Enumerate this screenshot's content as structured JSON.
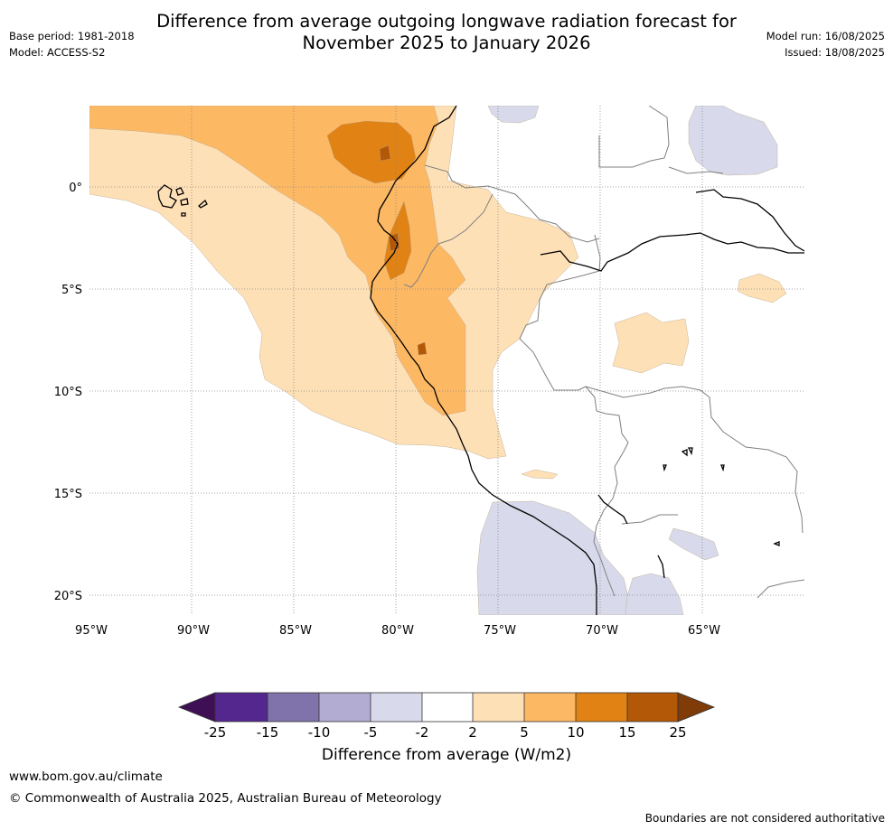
{
  "header": {
    "title_line1": "Difference from average outgoing longwave radiation forecast for",
    "title_line2": "November 2025 to January 2026",
    "base_period": "Base period: 1981-2018",
    "model": "Model: ACCESS-S2",
    "model_run": "Model run: 16/08/2025",
    "issued": "Issued: 18/08/2025"
  },
  "map": {
    "lon_labels": [
      "95°W",
      "90°W",
      "85°W",
      "80°W",
      "75°W",
      "70°W",
      "65°W"
    ],
    "lat_labels": [
      "0°",
      "5°S",
      "10°S",
      "15°S",
      "20°S"
    ],
    "colors": {
      "neg_extreme": "#3f0f55",
      "neg_25_15": "#54278f",
      "neg_15_10": "#8073ac",
      "neg_10_5": "#b2abd2",
      "neg_5_2": "#d8daeb",
      "neutral": "#ffffff",
      "pos_2_5": "#fee0b6",
      "pos_5_10": "#fdb863",
      "pos_10_15": "#e08214",
      "pos_15_25": "#b35806",
      "pos_extreme": "#7f3b08"
    }
  },
  "colorbar": {
    "ticks": [
      "-25",
      "-15",
      "-10",
      "-5",
      "-2",
      "2",
      "5",
      "10",
      "15",
      "25"
    ],
    "title": "Difference from average (W/m2)"
  },
  "footer": {
    "url": "www.bom.gov.au/climate",
    "copyright": "© Commonwealth of Australia 2025, Australian Bureau of Meteorology",
    "note": "Boundaries are not considered authoritative"
  }
}
